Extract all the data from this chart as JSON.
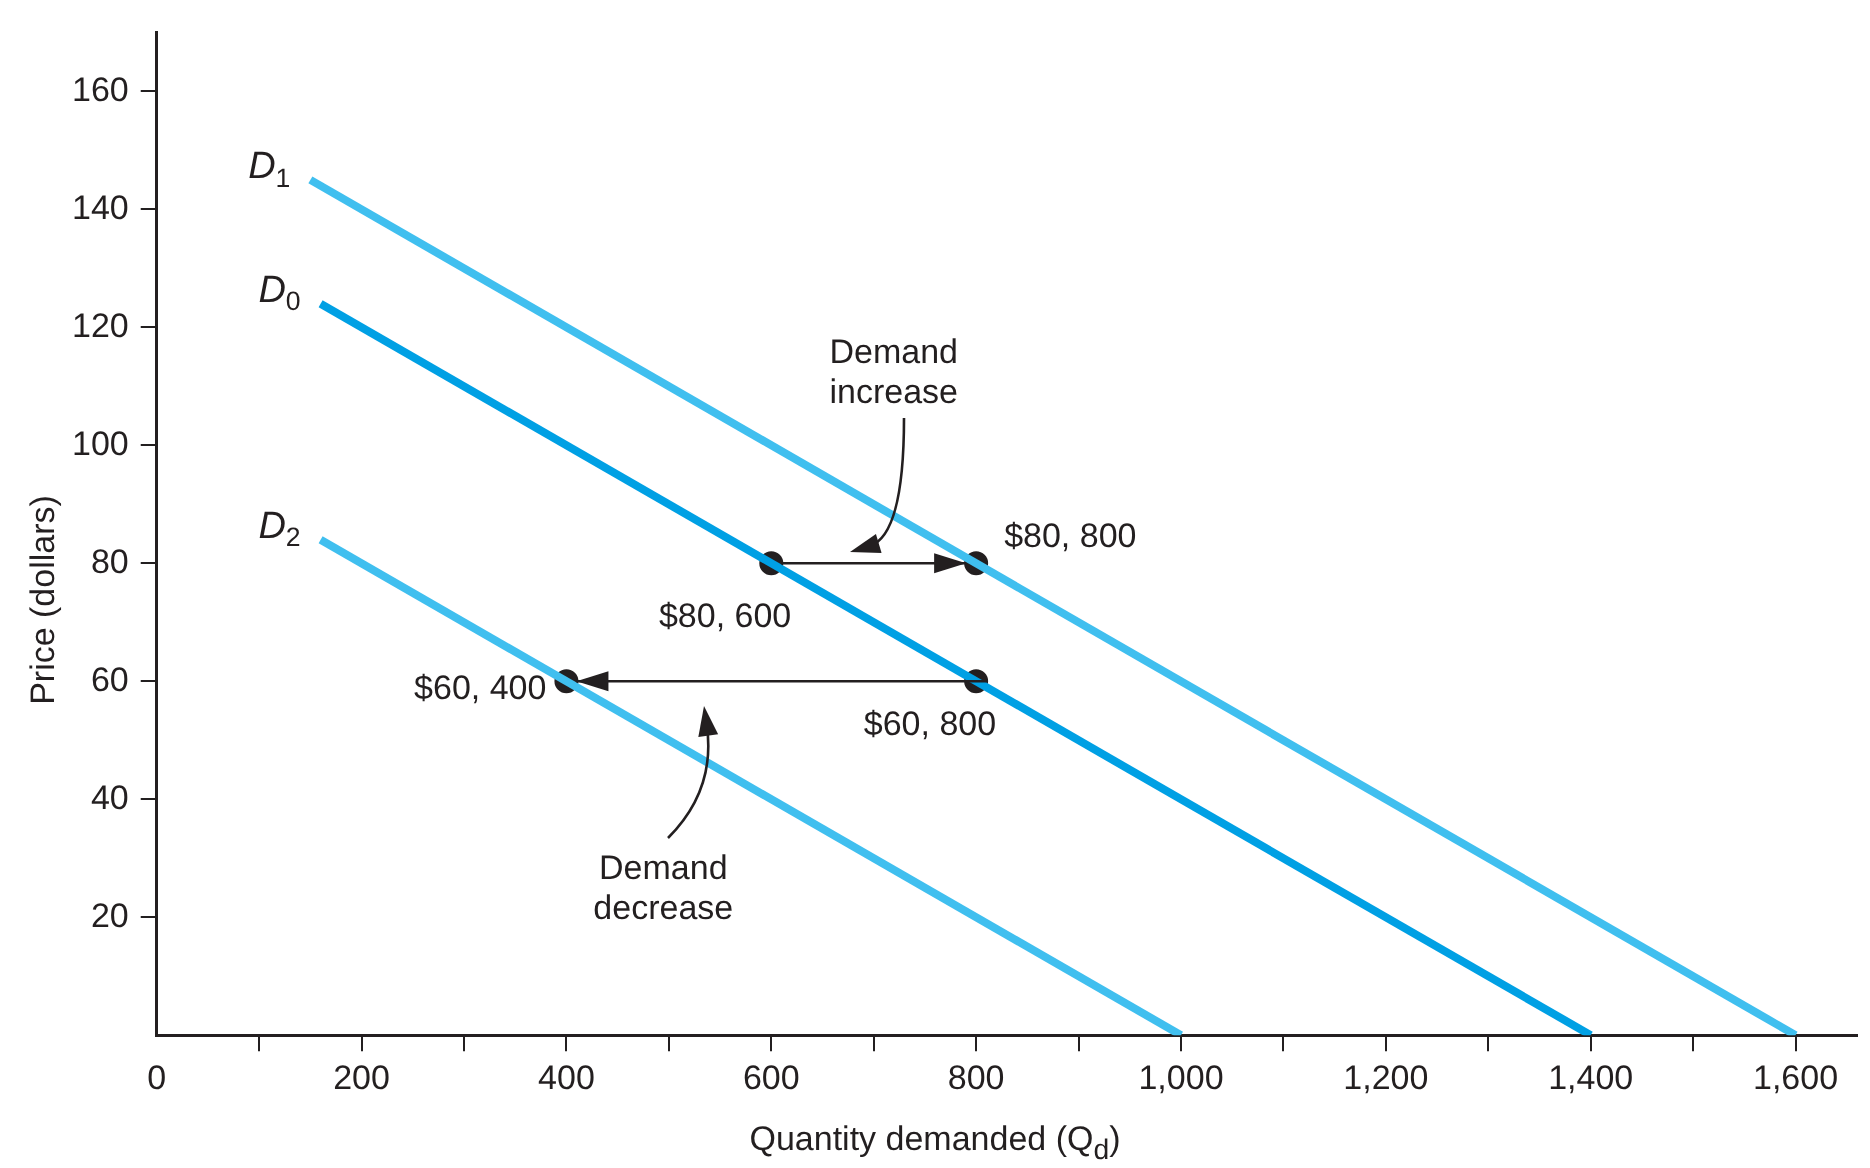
{
  "chart_data": {
    "type": "line",
    "xlabel": "Quantity demanded (Q$_{d}$)",
    "ylabel": "Price (dollars)",
    "xlim": [
      0,
      1660
    ],
    "ylim": [
      0,
      170
    ],
    "xticks": [
      0,
      {
        "value": 100,
        "label": null
      },
      200,
      {
        "value": 300,
        "label": null
      },
      400,
      {
        "value": 500,
        "label": null
      },
      600,
      {
        "value": 700,
        "label": null
      },
      800,
      {
        "value": 900,
        "label": null
      },
      {
        "value": 1000,
        "label": "1,000"
      },
      {
        "value": 1100,
        "label": null
      },
      {
        "value": 1200,
        "label": "1,200"
      },
      {
        "value": 1300,
        "label": null
      },
      {
        "value": 1400,
        "label": "1,400"
      },
      {
        "value": 1500,
        "label": null
      },
      {
        "value": 1600,
        "label": "1,600"
      }
    ],
    "yticks": [
      20,
      40,
      60,
      80,
      100,
      120,
      140,
      160
    ],
    "grid": false,
    "legend": false,
    "marker": "none",
    "line_style": "solid",
    "series": [
      {
        "name": "D$_{1}$",
        "color": "#40bfef",
        "x": [
          150,
          1600
        ],
        "values": [
          145,
          0
        ]
      },
      {
        "name": "D$_{0}$",
        "color": "#00a0e4",
        "x": [
          160,
          1400
        ],
        "values": [
          124,
          0
        ]
      },
      {
        "name": "D$_{2}$",
        "color": "#40bfef",
        "x": [
          160,
          1000
        ],
        "values": [
          84,
          0
        ]
      },
      {
        "type": "scatter",
        "color": "#231f20",
        "marker": "circle",
        "x": [
          600,
          800,
          800,
          400
        ],
        "values": [
          80,
          80,
          60,
          60
        ],
        "value_labels": [
          "$80, 600",
          "$80, 800",
          "$60, 800",
          "$60, 400"
        ]
      }
    ],
    "annotations": [
      "Demand increase",
      "Demand decrease"
    ]
  }
}
